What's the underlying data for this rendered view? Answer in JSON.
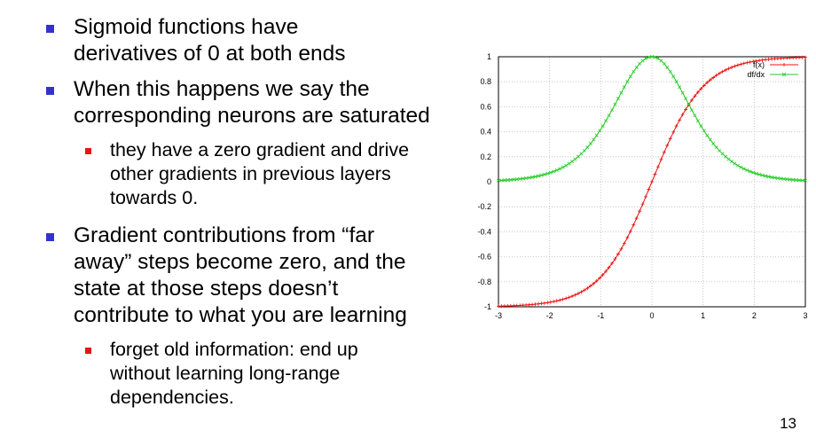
{
  "slide": {
    "bullets": [
      {
        "level": 1,
        "lines": [
          "Sigmoid functions have",
          "derivatives of 0 at both ends"
        ]
      },
      {
        "level": 1,
        "lines": [
          "When this happens we say the",
          "corresponding neurons are saturated"
        ]
      },
      {
        "level": 2,
        "lines": [
          "they have a zero gradient and drive",
          "other gradients in previous layers",
          "towards 0."
        ]
      },
      {
        "level": 1,
        "lines": [
          "Gradient contributions from “far",
          "away” steps become zero, and the",
          "state at those steps doesn’t",
          "contribute to what you are learning"
        ]
      },
      {
        "level": 2,
        "lines": [
          "forget old information: end up",
          "without learning long-range",
          "dependencies."
        ]
      }
    ],
    "page_number": "13"
  },
  "colors": {
    "level1_bullet": "#3333cc",
    "level2_bullet": "#ee1111",
    "series_f": "#ee1111",
    "series_df": "#22cc22"
  },
  "chart_data": {
    "type": "line",
    "title": "",
    "xlabel": "",
    "ylabel": "",
    "xlim": [
      -3,
      3
    ],
    "ylim": [
      -1,
      1
    ],
    "x_ticks": [
      "-3",
      "-2",
      "-1",
      "0",
      "1",
      "2",
      "3"
    ],
    "y_ticks": [
      "-1",
      "-0.8",
      "-0.6",
      "-0.4",
      "-0.2",
      "0",
      "0.2",
      "0.4",
      "0.6",
      "0.8",
      "1"
    ],
    "grid": true,
    "legend": "top-right",
    "series": [
      {
        "name": "f(x)",
        "x": [
          -3,
          -2.5,
          -2,
          -1.5,
          -1,
          -0.5,
          0,
          0.5,
          1,
          1.5,
          2,
          2.5,
          3
        ],
        "values": [
          -0.995,
          -0.987,
          -0.964,
          -0.905,
          -0.762,
          -0.462,
          0,
          0.462,
          0.762,
          0.905,
          0.964,
          0.987,
          0.995
        ]
      },
      {
        "name": "df/dx",
        "x": [
          -3,
          -2.5,
          -2,
          -1.5,
          -1,
          -0.5,
          0,
          0.5,
          1,
          1.5,
          2,
          2.5,
          3
        ],
        "values": [
          0.01,
          0.027,
          0.071,
          0.181,
          0.42,
          0.786,
          1,
          0.786,
          0.42,
          0.181,
          0.071,
          0.027,
          0.01
        ]
      }
    ]
  }
}
